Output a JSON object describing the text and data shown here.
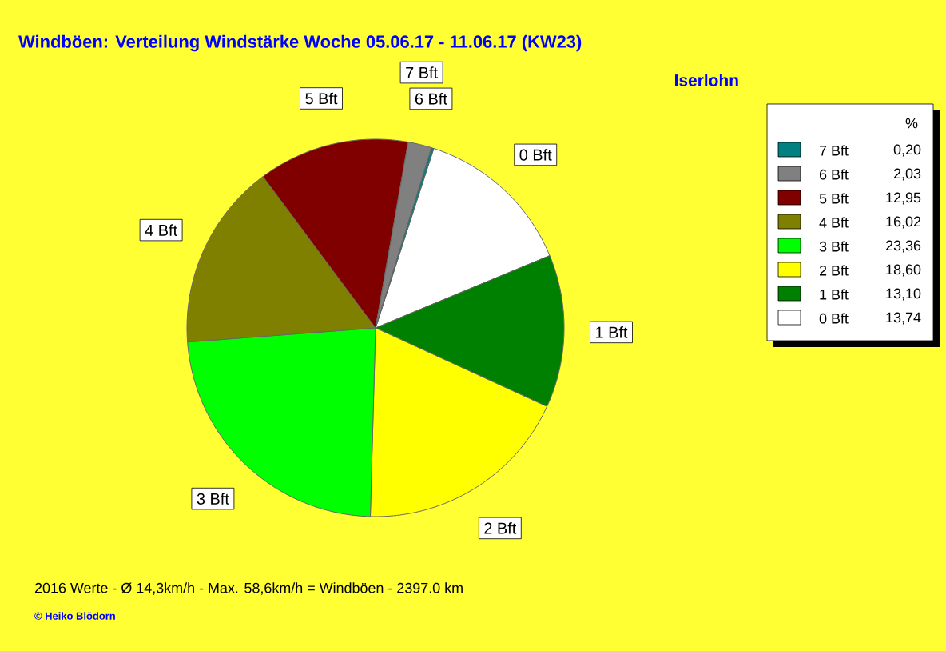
{
  "chart_data": {
    "type": "pie",
    "title": "Windböen: Verteilung Windstärke  Woche 05.06.17 - 11.06.17 (KW23)",
    "subtitle": "Iserlohn",
    "categories": [
      "0 Bft",
      "1 Bft",
      "2 Bft",
      "3 Bft",
      "4 Bft",
      "5 Bft",
      "6 Bft",
      "7 Bft"
    ],
    "values": [
      13.74,
      13.1,
      18.6,
      23.36,
      16.02,
      12.95,
      2.03,
      0.2
    ],
    "value_labels": [
      "13,74",
      "13,10",
      "18,60",
      "23,36",
      "16,02",
      "12,95",
      "2,03",
      "0,20"
    ],
    "colors": [
      "#ffffff",
      "#008000",
      "#ffff00",
      "#00ff00",
      "#808000",
      "#800000",
      "#808080",
      "#008080"
    ],
    "legend": "right",
    "legend_title": "%",
    "annotations": [
      "2016 Werte   -   Ø 14,3km/h  -  Max. 58,6km/h = Windböen   -   2397.0 km",
      "© Heiko Blödorn"
    ]
  }
}
